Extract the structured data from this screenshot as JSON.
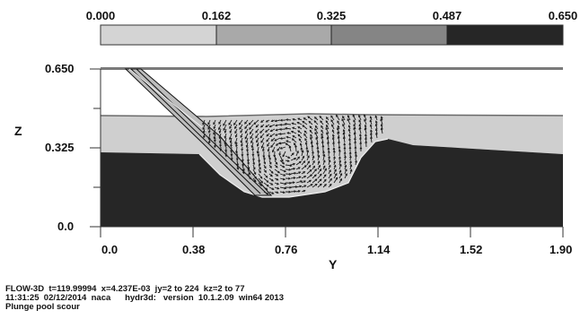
{
  "legend": {
    "ticks": [
      "0.000",
      "0.162",
      "0.325",
      "0.487",
      "0.650"
    ],
    "colors": [
      "#d4d4d4",
      "#a9a9a9",
      "#858585",
      "#5a5a5a",
      "#262626"
    ]
  },
  "axes": {
    "z_title": "Z",
    "y_title": "Y",
    "z_ticks": [
      "0.650",
      "0.325",
      "0.0"
    ],
    "y_ticks": [
      "0.0",
      "0.38",
      "0.76",
      "1.14",
      "1.52",
      "1.90"
    ]
  },
  "footer": {
    "line1": "FLOW-3D  t=119.99994  x=4.237E-03  jy=2 to 224  kz=2 to 77",
    "line2": "11:31:25  02/12/2014  naca      hydr3d:   version  10.1.2.09  win64 2013",
    "line3": "Plunge pool scour"
  },
  "colors": {
    "sediment": "#262626",
    "water": "#cfcfcf",
    "vector": "#1a1a1a"
  }
}
